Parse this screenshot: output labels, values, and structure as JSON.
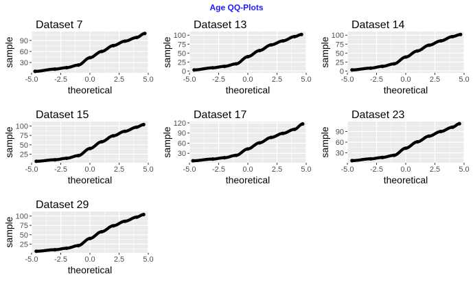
{
  "figure": {
    "title": "Age QQ-Plots",
    "title_color": "#1a1aff"
  },
  "style": {
    "panel_bg": "#ebebeb",
    "grid_color": "#ffffff",
    "point_color": "#000000",
    "axis_text_color": "#4d4d4d"
  },
  "chart_data": [
    {
      "type": "scatter",
      "title": "Dataset 7",
      "xlabel": "theoretical",
      "ylabel": "sample",
      "xlim": [
        -5,
        5
      ],
      "ylim": [
        2,
        114
      ],
      "x_ticks": [
        -5.0,
        -2.5,
        0.0,
        2.5,
        5.0
      ],
      "y_ticks": [
        30,
        60,
        90
      ],
      "grid": true,
      "x": [
        -4.7,
        -3,
        -2,
        -1,
        0,
        1,
        2,
        3,
        4,
        4.7
      ],
      "y": [
        6,
        12,
        16,
        23,
        43,
        60,
        76,
        88,
        98,
        109
      ]
    },
    {
      "type": "scatter",
      "title": "Dataset 13",
      "xlabel": "theoretical",
      "ylabel": "sample",
      "xlim": [
        -5,
        5
      ],
      "ylim": [
        -5,
        110
      ],
      "x_ticks": [
        -5.0,
        -2.5,
        0.0,
        2.5,
        5.0
      ],
      "y_ticks": [
        0,
        25,
        50,
        75,
        100
      ],
      "grid": true,
      "x": [
        -4.6,
        -3,
        -2,
        -1,
        0,
        1,
        2,
        3,
        4,
        4.6
      ],
      "y": [
        3,
        9,
        13,
        20,
        40,
        57,
        73,
        84,
        96,
        102
      ]
    },
    {
      "type": "scatter",
      "title": "Dataset 14",
      "xlabel": "theoretical",
      "ylabel": "sample",
      "xlim": [
        -5,
        5
      ],
      "ylim": [
        -5,
        110
      ],
      "x_ticks": [
        -5.0,
        -2.5,
        0.0,
        2.5,
        5.0
      ],
      "y_ticks": [
        0,
        25,
        50,
        75,
        100
      ],
      "grid": true,
      "x": [
        -4.6,
        -3,
        -2,
        -1,
        0,
        1,
        2,
        3,
        4,
        4.7
      ],
      "y": [
        3,
        8,
        13,
        20,
        39,
        56,
        72,
        84,
        96,
        102
      ]
    },
    {
      "type": "scatter",
      "title": "Dataset 15",
      "xlabel": "theoretical",
      "ylabel": "sample",
      "xlim": [
        -5,
        5
      ],
      "ylim": [
        2,
        112
      ],
      "x_ticks": [
        -5.0,
        -2.5,
        0.0,
        2.5,
        5.0
      ],
      "y_ticks": [
        25,
        50,
        75,
        100
      ],
      "grid": true,
      "x": [
        -4.6,
        -3,
        -2,
        -1,
        0,
        1,
        2,
        3,
        4,
        4.6
      ],
      "y": [
        6,
        10,
        14,
        21,
        40,
        58,
        74,
        86,
        97,
        104
      ]
    },
    {
      "type": "scatter",
      "title": "Dataset 17",
      "xlabel": "theoretical",
      "ylabel": "sample",
      "xlim": [
        -5,
        5
      ],
      "ylim": [
        2,
        124
      ],
      "x_ticks": [
        -5.0,
        -2.5,
        0.0,
        2.5,
        5.0
      ],
      "y_ticks": [
        30,
        60,
        90,
        120
      ],
      "grid": true,
      "x": [
        -4.7,
        -3,
        -2,
        -1,
        0,
        1,
        2,
        3,
        4,
        4.7
      ],
      "y": [
        8,
        13,
        17,
        24,
        43,
        61,
        77,
        89,
        101,
        117
      ]
    },
    {
      "type": "scatter",
      "title": "Dataset 23",
      "xlabel": "theoretical",
      "ylabel": "sample",
      "xlim": [
        -5,
        5
      ],
      "ylim": [
        2,
        118
      ],
      "x_ticks": [
        -5.0,
        -2.5,
        0.0,
        2.5,
        5.0
      ],
      "y_ticks": [
        30,
        60,
        90
      ],
      "grid": true,
      "x": [
        -4.6,
        -3,
        -2,
        -1,
        0,
        1,
        2,
        3,
        4,
        4.6
      ],
      "y": [
        8,
        13,
        17,
        23,
        43,
        61,
        77,
        90,
        102,
        112
      ]
    },
    {
      "type": "scatter",
      "title": "Dataset 29",
      "xlabel": "theoretical",
      "ylabel": "sample",
      "xlim": [
        -5,
        5
      ],
      "ylim": [
        2,
        112
      ],
      "x_ticks": [
        -5.0,
        -2.5,
        0.0,
        2.5,
        5.0
      ],
      "y_ticks": [
        25,
        50,
        75,
        100
      ],
      "grid": true,
      "x": [
        -4.6,
        -3,
        -2,
        -1,
        0,
        1,
        2,
        3,
        4,
        4.6
      ],
      "y": [
        6,
        10,
        14,
        21,
        40,
        58,
        74,
        86,
        97,
        104
      ]
    }
  ]
}
